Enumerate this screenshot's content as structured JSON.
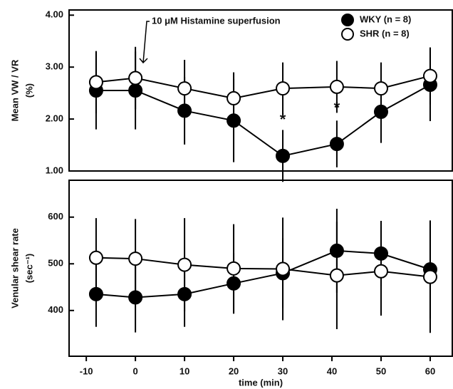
{
  "chart_data": [
    {
      "type": "line",
      "ylabel": "Mean VW / VR",
      "ylabel2": "(%)",
      "annotation": "10 μM Histamine superfusion",
      "x": [
        -8,
        0,
        10,
        20,
        30,
        41,
        50,
        60
      ],
      "xlim": [
        -13.5,
        64.5
      ],
      "ylim": [
        1.0,
        4.1
      ],
      "yticks": [
        {
          "value": 1,
          "label": "1.00"
        },
        {
          "value": 2,
          "label": "2.00"
        },
        {
          "value": 3,
          "label": "3.00"
        },
        {
          "value": 4,
          "label": "4.00"
        }
      ],
      "legend": "upper right",
      "series": [
        {
          "name": "WKY (n = 8)",
          "color": "#000000",
          "values": [
            2.55,
            2.55,
            2.16,
            1.97,
            1.29,
            1.52,
            2.14,
            2.66
          ],
          "errors": [
            0.75,
            0.75,
            0.65,
            0.8,
            0.5,
            0.45,
            0.6,
            0.7
          ]
        },
        {
          "name": "SHR (n = 8)",
          "color": "#ffffff",
          "values": [
            2.71,
            2.79,
            2.59,
            2.4,
            2.59,
            2.62,
            2.59,
            2.83
          ],
          "errors": [
            0.6,
            0.6,
            0.55,
            0.5,
            0.5,
            0.5,
            0.5,
            0.55
          ]
        }
      ],
      "annotations": [
        {
          "text": "*",
          "x": 30,
          "y": 1.97
        },
        {
          "text": "*",
          "x": 41,
          "y": 2.2
        }
      ]
    },
    {
      "type": "line",
      "ylabel": "Venular shear rate",
      "ylabel2": "(sec⁻¹)",
      "xlabel": "time (min)",
      "x": [
        -8,
        0,
        10,
        20,
        30,
        41,
        50,
        60
      ],
      "xlim": [
        -13.5,
        64.5
      ],
      "xticks": [
        -10,
        0,
        10,
        20,
        30,
        40,
        50,
        60
      ],
      "ylim": [
        302,
        679
      ],
      "yticks": [
        400,
        500,
        600
      ],
      "series": [
        {
          "name": "WKY (n = 8)",
          "color": "#000000",
          "values": [
            435,
            428,
            435,
            458,
            480,
            528,
            522,
            488
          ],
          "errors": [
            70,
            75,
            70,
            65,
            75,
            90,
            70,
            105
          ]
        },
        {
          "name": "SHR (n = 8)",
          "color": "#ffffff",
          "values": [
            513,
            511,
            498,
            490,
            489,
            475,
            484,
            472
          ],
          "errors": [
            85,
            85,
            100,
            95,
            110,
            115,
            95,
            120
          ]
        }
      ]
    }
  ]
}
